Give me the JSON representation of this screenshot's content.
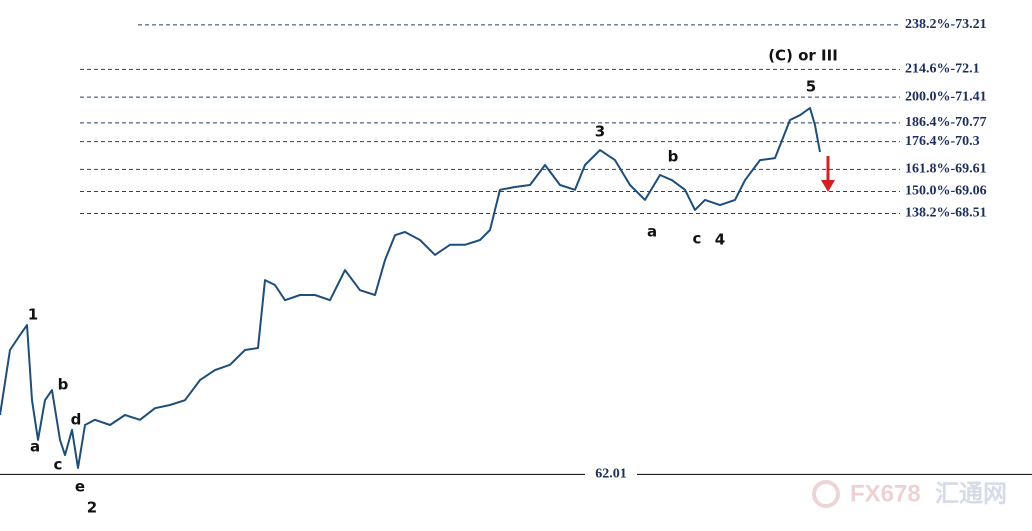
{
  "chart_data": {
    "type": "line",
    "color": "#1f4e79",
    "xlim": [
      0,
      1032
    ],
    "ylim": [
      60.6,
      73.83
    ],
    "x": [
      0,
      10,
      20,
      27,
      32,
      38,
      45,
      52,
      60,
      65,
      72,
      78,
      85,
      95,
      110,
      125,
      140,
      155,
      170,
      185,
      200,
      215,
      230,
      245,
      258,
      265,
      275,
      285,
      300,
      315,
      330,
      345,
      360,
      375,
      385,
      395,
      405,
      420,
      435,
      450,
      465,
      480,
      490,
      500,
      515,
      530,
      545,
      560,
      575,
      585,
      600,
      615,
      630,
      645,
      660,
      672,
      685,
      695,
      705,
      720,
      735,
      745,
      760,
      775,
      790,
      800,
      810,
      815,
      820
    ],
    "values": [
      63.49,
      65.11,
      65.48,
      65.73,
      63.86,
      62.87,
      63.86,
      64.11,
      62.87,
      62.49,
      63.12,
      62.17,
      63.24,
      63.37,
      63.24,
      63.49,
      63.37,
      63.66,
      63.74,
      63.86,
      64.36,
      64.61,
      64.74,
      65.11,
      65.16,
      66.85,
      66.73,
      66.35,
      66.48,
      66.48,
      66.35,
      67.1,
      66.6,
      66.48,
      67.35,
      67.97,
      68.05,
      67.85,
      67.48,
      67.73,
      67.73,
      67.85,
      68.1,
      69.1,
      69.17,
      69.22,
      69.72,
      69.22,
      69.1,
      69.72,
      70.09,
      69.84,
      69.22,
      68.85,
      69.47,
      69.34,
      69.1,
      68.6,
      68.85,
      68.72,
      68.85,
      69.34,
      69.84,
      69.89,
      70.84,
      70.96,
      71.14,
      70.71,
      70.04
    ],
    "levels": [
      {
        "value": 73.21,
        "label": "238.2%-73.21"
      },
      {
        "value": 72.1,
        "label": "214.6%-72.1"
      },
      {
        "value": 71.41,
        "label": "200.0%-71.41"
      },
      {
        "value": 70.77,
        "label": "186.4%-70.77"
      },
      {
        "value": 70.3,
        "label": "176.4%-70.3"
      },
      {
        "value": 69.61,
        "label": "161.8%-69.61"
      },
      {
        "value": 69.06,
        "label": "150.0%-69.06"
      },
      {
        "value": 68.51,
        "label": "138.2%-68.51"
      }
    ],
    "baseline": 62.01,
    "annotations": [
      {
        "text": "1",
        "x": 33,
        "y": 65.98
      },
      {
        "text": "b",
        "x": 63,
        "y": 64.24
      },
      {
        "text": "a",
        "x": 35,
        "y": 62.69
      },
      {
        "text": "d",
        "x": 76,
        "y": 63.37
      },
      {
        "text": "c",
        "x": 58,
        "y": 62.24
      },
      {
        "text": "e",
        "x": 80,
        "y": 61.7
      },
      {
        "text": "2",
        "x": 92,
        "y": 61.17
      },
      {
        "text": "3",
        "x": 600,
        "y": 70.54
      },
      {
        "text": "b",
        "x": 673,
        "y": 69.92
      },
      {
        "text": "a",
        "x": 652,
        "y": 68.05
      },
      {
        "text": "c",
        "x": 697,
        "y": 67.87
      },
      {
        "text": "4",
        "x": 720,
        "y": 67.85
      },
      {
        "text": "5",
        "x": 811,
        "y": 71.66
      },
      {
        "text": "(C) or III",
        "x": 803,
        "y": 72.43
      }
    ],
    "watermark": {
      "brand": "FX678",
      "name": "汇通网"
    }
  }
}
